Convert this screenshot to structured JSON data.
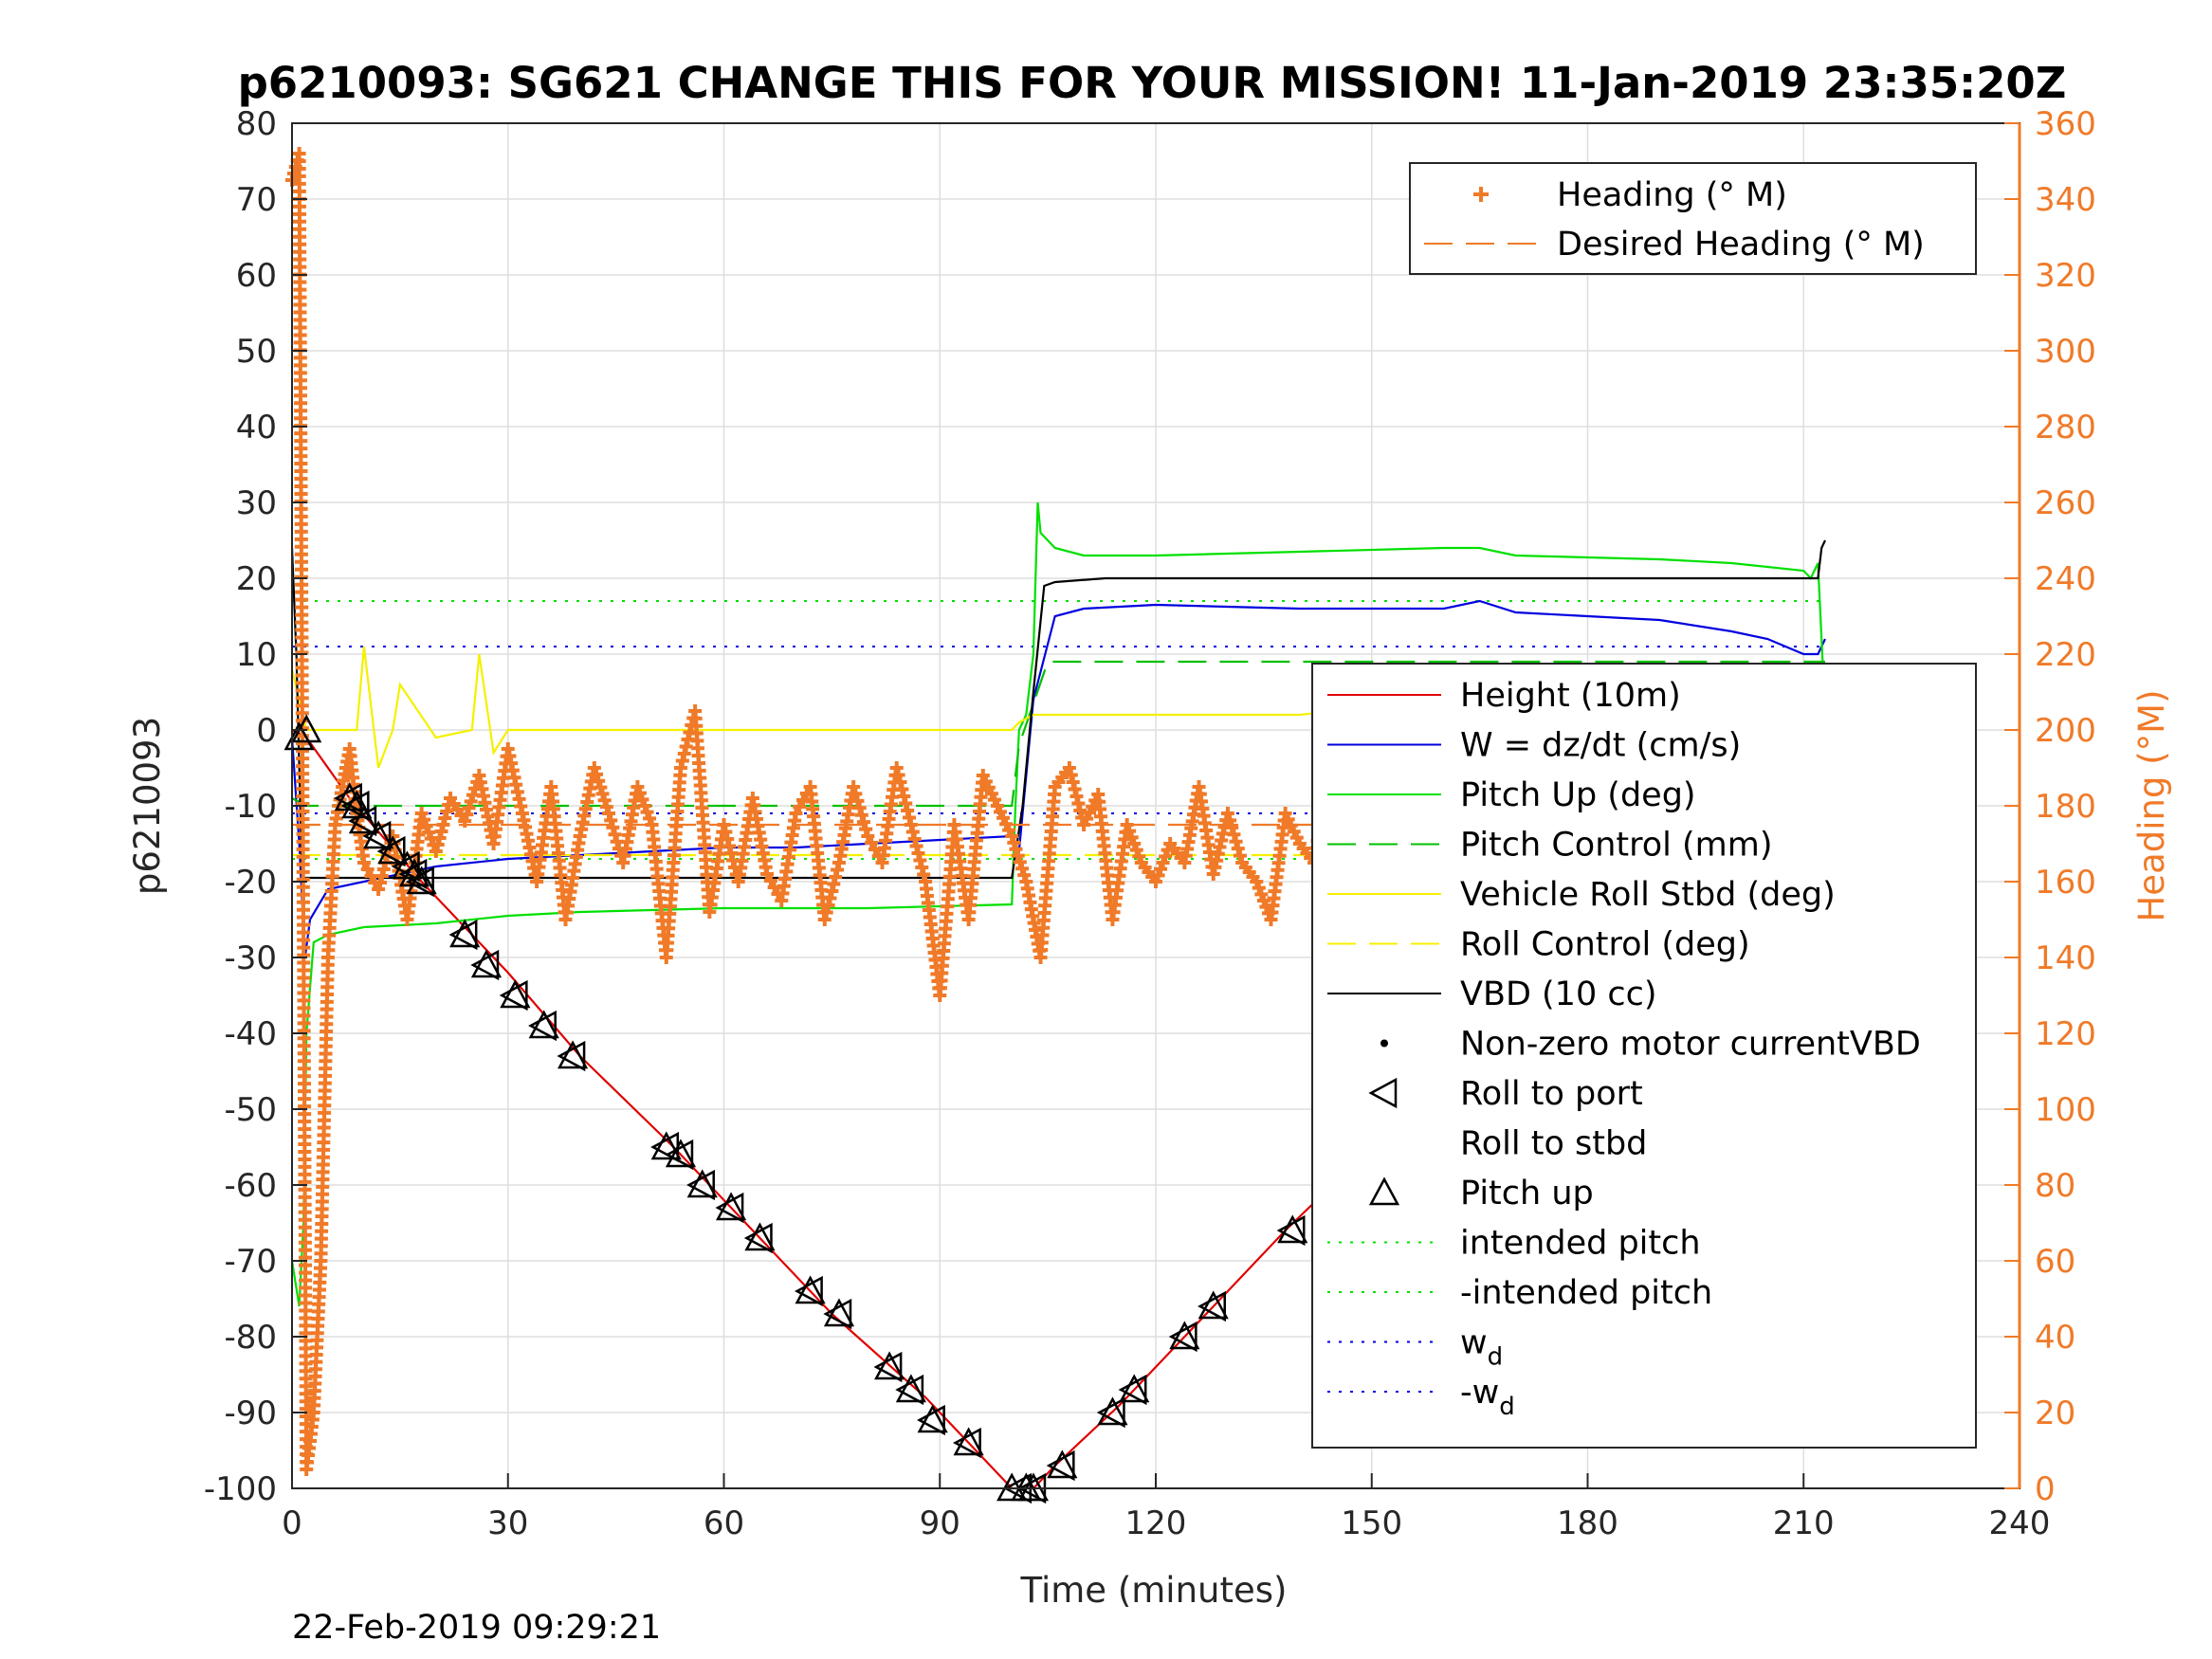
{
  "chart_data": {
    "type": "line",
    "title": "p6210093: SG621 CHANGE THIS FOR YOUR MISSION! 11-Jan-2019 23:35:20Z",
    "xlabel": "Time (minutes)",
    "ylabel": "p6210093",
    "y2label": "Heading (°M)",
    "xlim": [
      0,
      240
    ],
    "ylim": [
      -100,
      80
    ],
    "y2lim": [
      0,
      360
    ],
    "xticks": [
      "0",
      "30",
      "60",
      "90",
      "120",
      "150",
      "180",
      "210",
      "240"
    ],
    "yticks": [
      "80",
      "70",
      "60",
      "50",
      "40",
      "30",
      "20",
      "10",
      "0",
      "-10",
      "-20",
      "-30",
      "-40",
      "-50",
      "-60",
      "-70",
      "-80",
      "-90",
      "-100"
    ],
    "y2ticks": [
      "360",
      "340",
      "320",
      "300",
      "280",
      "260",
      "240",
      "220",
      "200",
      "180",
      "160",
      "140",
      "120",
      "100",
      "80",
      "60",
      "40",
      "20",
      "0"
    ],
    "grid": true,
    "timestamp": "22-Feb-2019 09:29:21",
    "legend_heading": [
      {
        "label": "Heading (° M)",
        "color": "#f07a28",
        "style": "plus"
      },
      {
        "label": "Desired Heading (° M)",
        "color": "#f07a28",
        "style": "dash"
      }
    ],
    "legend_main": [
      {
        "label": "Height (10m)",
        "color": "#e00000",
        "style": "line"
      },
      {
        "label": "W = dz/dt (cm/s)",
        "color": "#0000e0",
        "style": "line"
      },
      {
        "label": "Pitch Up (deg)",
        "color": "#00e000",
        "style": "line"
      },
      {
        "label": "Pitch Control (mm)",
        "color": "#00c000",
        "style": "dash"
      },
      {
        "label": "Vehicle Roll Stbd (deg)",
        "color": "#f5f000",
        "style": "line"
      },
      {
        "label": "Roll Control (deg)",
        "color": "#f5f000",
        "style": "dash"
      },
      {
        "label": "VBD (10 cc)",
        "color": "#000000",
        "style": "line"
      },
      {
        "label": "Non-zero motor currentVBD",
        "color": "#000000",
        "style": "dot"
      },
      {
        "label": "Roll to port",
        "color": "#000000",
        "style": "tri-left"
      },
      {
        "label": "Roll to stbd",
        "color": "#000000",
        "style": "none"
      },
      {
        "label": "Pitch up",
        "color": "#000000",
        "style": "tri-up"
      },
      {
        "label": "intended pitch",
        "color": "#00e000",
        "style": "dotted"
      },
      {
        "label": "-intended pitch",
        "color": "#00e000",
        "style": "dotted"
      },
      {
        "label": "w",
        "sub": "d",
        "color": "#0000e0",
        "style": "dotted"
      },
      {
        "label": "-w",
        "sub": "d",
        "color": "#0000e0",
        "style": "dotted"
      }
    ],
    "series": [
      {
        "name": "Height (10m)",
        "color": "#e00000",
        "x": [
          0,
          2,
          8,
          18,
          30,
          40,
          53,
          65,
          75,
          88,
          100,
          103,
          106,
          115,
          125,
          138,
          150,
          165,
          180,
          195,
          205,
          213
        ],
        "y": [
          0,
          -1,
          -9,
          -20,
          -32,
          -43,
          -55,
          -67,
          -77,
          -88,
          -100,
          -100,
          -97,
          -89,
          -79,
          -66,
          -55,
          -43,
          -27,
          -12,
          -5,
          -1
        ]
      },
      {
        "name": "W = dz/dt (cm/s)",
        "color": "#0000e0",
        "x": [
          0,
          1,
          1.8,
          2.5,
          5,
          10,
          20,
          30,
          40,
          50,
          60,
          70,
          80,
          90,
          100,
          101,
          103,
          106,
          110,
          120,
          140,
          160,
          165,
          170,
          180,
          190,
          200,
          205,
          210,
          212,
          213
        ],
        "y": [
          -1,
          -15,
          -30,
          -25,
          -21,
          -20,
          -18,
          -17,
          -16.5,
          -16,
          -15.5,
          -15.5,
          -15,
          -14.5,
          -14,
          -16,
          4,
          15,
          16,
          16.5,
          16,
          16,
          17,
          15.5,
          15,
          14.5,
          13,
          12,
          10,
          10,
          12
        ]
      },
      {
        "name": "Pitch Up (deg)",
        "color": "#00e000",
        "x": [
          0,
          1,
          1.6,
          2,
          3,
          5,
          10,
          20,
          30,
          40,
          60,
          80,
          100,
          100.5,
          101,
          102,
          103,
          103.6,
          104,
          106,
          110,
          120,
          140,
          160,
          165,
          170,
          190,
          200,
          210,
          211,
          212,
          213
        ],
        "y": [
          -70,
          -76,
          -65,
          -40,
          -28,
          -27,
          -26,
          -25.5,
          -24.5,
          -24,
          -23.5,
          -23.5,
          -23,
          -10,
          0,
          2,
          10,
          30,
          26,
          24,
          23,
          23,
          23.5,
          24,
          24,
          23,
          22.5,
          22,
          21,
          20,
          22,
          2
        ]
      },
      {
        "name": "Pitch Control (mm)",
        "color": "#00c000",
        "style": "dash",
        "x": [
          0,
          2,
          100,
          101,
          105,
          213
        ],
        "y": [
          -9,
          -10,
          -10,
          -2,
          9,
          9
        ]
      },
      {
        "name": "Vehicle Roll Stbd (deg)",
        "color": "#f5f000",
        "x": [
          0,
          2,
          9,
          10,
          12,
          14,
          15,
          20,
          25,
          26,
          28,
          30,
          40,
          50,
          60,
          70,
          80,
          90,
          95,
          100,
          101,
          103,
          110,
          120,
          130,
          140,
          150,
          160,
          170,
          180,
          190,
          200,
          205,
          210,
          211,
          212,
          213
        ],
        "y": [
          8,
          0,
          0,
          11,
          -5,
          0,
          6,
          -1,
          0,
          10,
          -3,
          0,
          0,
          0,
          0,
          0,
          0,
          0,
          0,
          0,
          1,
          2,
          2,
          2,
          2,
          2,
          3,
          2,
          2,
          2,
          2,
          2,
          2,
          3,
          8,
          2,
          3
        ]
      },
      {
        "name": "Roll Control (deg)",
        "color": "#f5f000",
        "style": "dash",
        "x": [
          0,
          213
        ],
        "y": [
          -16.5,
          -16.5
        ]
      },
      {
        "name": "VBD (10 cc)",
        "color": "#000000",
        "x": [
          0,
          0.6,
          1.4,
          2,
          100,
          101.5,
          103,
          104.5,
          106,
          113,
          212,
          212.5,
          213
        ],
        "y": [
          24,
          10,
          -19.5,
          -19.5,
          -19.5,
          -10,
          5,
          19,
          19.5,
          20,
          20,
          24,
          25
        ]
      },
      {
        "name": "Heading (° M)",
        "color": "#f07a28",
        "style": "plus",
        "x": [
          0,
          1,
          2,
          3,
          4,
          5,
          6,
          7,
          8,
          9,
          10,
          12,
          14,
          16,
          18,
          20,
          22,
          24,
          26,
          28,
          30,
          32,
          34,
          36,
          38,
          40,
          42,
          44,
          46,
          48,
          50,
          52,
          54,
          56,
          58,
          60,
          62,
          64,
          66,
          68,
          70,
          72,
          74,
          76,
          78,
          80,
          82,
          84,
          86,
          88,
          90,
          92,
          94,
          96,
          98,
          100,
          102,
          104,
          106,
          108,
          110,
          112,
          114,
          116,
          118,
          120,
          122,
          124,
          126,
          128,
          130,
          132,
          134,
          136,
          138,
          140,
          142,
          144,
          146,
          148,
          150,
          152,
          154,
          156,
          158,
          160,
          162,
          164,
          166,
          168,
          170,
          172,
          174,
          176,
          178,
          180,
          182,
          184,
          186,
          188,
          190,
          192,
          194,
          196,
          198,
          200,
          202,
          204,
          206,
          208,
          210,
          212,
          213
        ],
        "y": [
          345,
          352,
          5,
          20,
          60,
          140,
          175,
          185,
          195,
          178,
          165,
          158,
          172,
          150,
          178,
          168,
          182,
          176,
          188,
          170,
          195,
          178,
          160,
          185,
          150,
          172,
          190,
          178,
          165,
          185,
          175,
          140,
          190,
          205,
          152,
          175,
          160,
          182,
          162,
          155,
          178,
          185,
          150,
          165,
          185,
          172,
          165,
          190,
          175,
          160,
          130,
          175,
          150,
          188,
          180,
          172,
          160,
          140,
          185,
          190,
          175,
          183,
          150,
          175,
          165,
          160,
          170,
          165,
          185,
          162,
          178,
          165,
          160,
          150,
          178,
          170,
          165,
          190,
          175,
          160,
          180,
          195,
          170,
          155,
          178,
          168,
          150,
          170,
          175,
          165,
          178,
          168,
          175,
          160,
          172,
          178,
          165,
          150,
          178,
          170,
          160,
          175,
          165,
          178,
          150,
          128,
          160,
          182,
          175,
          150,
          210,
          165,
          170
        ]
      },
      {
        "name": "Desired Heading (° M)",
        "color": "#f07a28",
        "style": "dash",
        "x": [
          0,
          213
        ],
        "y": [
          175,
          175
        ]
      }
    ],
    "reference_lines": [
      {
        "label": "intended pitch",
        "y": 17,
        "color": "#00e000"
      },
      {
        "label": "-intended pitch",
        "y": -17,
        "color": "#00e000"
      },
      {
        "label": "w_d",
        "y": 11,
        "color": "#0000e0"
      },
      {
        "label": "-w_d",
        "y": -11,
        "color": "#0000e0"
      }
    ],
    "markers_roll_port": {
      "x": [
        8,
        9,
        10,
        12,
        14,
        16,
        17,
        18,
        24,
        27,
        31,
        35,
        39,
        52,
        54,
        57,
        61,
        65,
        72,
        76,
        83,
        86,
        89,
        94,
        101,
        103,
        107,
        114,
        117,
        124,
        128,
        139,
        146,
        150,
        153,
        160,
        165,
        172,
        180,
        184,
        190,
        195,
        197,
        200,
        203,
        205,
        209,
        211,
        212
      ],
      "y": [
        -9,
        -10,
        -12,
        -14,
        -16,
        -18,
        -19,
        -20,
        -27,
        -31,
        -35,
        -39,
        -43,
        -55,
        -56,
        -60,
        -63,
        -67,
        -74,
        -77,
        -84,
        -87,
        -91,
        -94,
        -100,
        -100,
        -97,
        -90,
        -87,
        -80,
        -76,
        -66,
        -60,
        -56,
        -53,
        -46,
        -42,
        -35,
        -28,
        -25,
        -18,
        -14,
        -12,
        -10,
        -8,
        -6,
        -3,
        -2,
        -1
      ]
    },
    "markers_pitch_up": {
      "x": [
        1,
        2,
        8,
        9,
        10,
        12,
        14,
        16,
        17,
        18,
        24,
        27,
        31,
        35,
        39,
        52,
        54,
        57,
        61,
        65,
        72,
        76,
        83,
        86,
        89,
        94,
        100,
        102,
        103,
        107,
        114,
        117,
        124,
        128,
        139,
        146,
        150,
        153,
        160,
        165,
        172,
        180,
        184,
        190,
        195,
        197,
        199,
        201,
        209,
        211,
        212
      ],
      "y": [
        -1,
        0,
        -9,
        -10,
        -12,
        -14,
        -16,
        -18,
        -19,
        -20,
        -27,
        -31,
        -35,
        -39,
        -43,
        -55,
        -56,
        -60,
        -63,
        -67,
        -74,
        -77,
        -84,
        -87,
        -91,
        -94,
        -100,
        -100,
        -100,
        -97,
        -90,
        -87,
        -80,
        -76,
        -66,
        -60,
        -56,
        -53,
        -46,
        -42,
        -35,
        -28,
        -25,
        -18,
        -14,
        -12,
        -10,
        -8,
        -3,
        -2,
        -1
      ]
    }
  }
}
